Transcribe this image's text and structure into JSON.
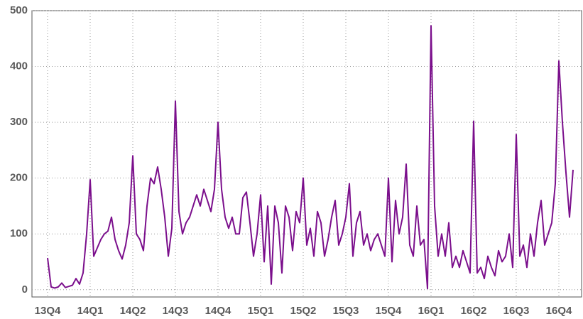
{
  "chart_data": {
    "type": "line",
    "categories": [
      "13Q4",
      null,
      null,
      null,
      null,
      null,
      null,
      null,
      null,
      null,
      null,
      null,
      "14Q1",
      null,
      null,
      null,
      null,
      null,
      null,
      null,
      null,
      null,
      null,
      null,
      "14Q2",
      null,
      null,
      null,
      null,
      null,
      null,
      null,
      null,
      null,
      null,
      null,
      "14Q3",
      null,
      null,
      null,
      null,
      null,
      null,
      null,
      null,
      null,
      null,
      null,
      "14Q4",
      null,
      null,
      null,
      null,
      null,
      null,
      null,
      null,
      null,
      null,
      null,
      "15Q1",
      null,
      null,
      null,
      null,
      null,
      null,
      null,
      null,
      null,
      null,
      null,
      "15Q2",
      null,
      null,
      null,
      null,
      null,
      null,
      null,
      null,
      null,
      null,
      null,
      "15Q3",
      null,
      null,
      null,
      null,
      null,
      null,
      null,
      null,
      null,
      null,
      null,
      "15Q4",
      null,
      null,
      null,
      null,
      null,
      null,
      null,
      null,
      null,
      null,
      null,
      "16Q1",
      null,
      null,
      null,
      null,
      null,
      null,
      null,
      null,
      null,
      null,
      null,
      "16Q2",
      null,
      null,
      null,
      null,
      null,
      null,
      null,
      null,
      null,
      null,
      null,
      "16Q3",
      null,
      null,
      null,
      null,
      null,
      null,
      null,
      null,
      null,
      null,
      null,
      "16Q4",
      null,
      null,
      null,
      null
    ],
    "series": [
      {
        "color": "#7b0f8c",
        "values": [
          57,
          5,
          3,
          5,
          12,
          4,
          6,
          8,
          20,
          10,
          30,
          100,
          197,
          60,
          75,
          90,
          100,
          105,
          130,
          90,
          70,
          55,
          80,
          120,
          240,
          100,
          90,
          70,
          150,
          200,
          190,
          220,
          180,
          130,
          60,
          110,
          338,
          140,
          100,
          120,
          130,
          150,
          170,
          150,
          180,
          160,
          140,
          180,
          300,
          180,
          130,
          110,
          130,
          100,
          100,
          165,
          175,
          120,
          60,
          100,
          170,
          50,
          150,
          10,
          150,
          120,
          30,
          150,
          130,
          70,
          140,
          120,
          200,
          80,
          110,
          60,
          140,
          120,
          60,
          90,
          130,
          160,
          80,
          100,
          130,
          190,
          60,
          120,
          140,
          80,
          100,
          70,
          90,
          100,
          80,
          60,
          200,
          50,
          160,
          100,
          130,
          225,
          80,
          60,
          150,
          80,
          90,
          2,
          473,
          150,
          60,
          100,
          60,
          120,
          40,
          60,
          40,
          70,
          50,
          30,
          302,
          30,
          40,
          20,
          60,
          40,
          25,
          70,
          50,
          60,
          100,
          40,
          278,
          60,
          80,
          40,
          100,
          60,
          120,
          160,
          80,
          100,
          120,
          190,
          410,
          300,
          210,
          130,
          215
        ]
      }
    ],
    "ylim": [
      -13,
      500
    ],
    "yticks": [
      0,
      100,
      200,
      300,
      400,
      500
    ],
    "grid": true
  }
}
